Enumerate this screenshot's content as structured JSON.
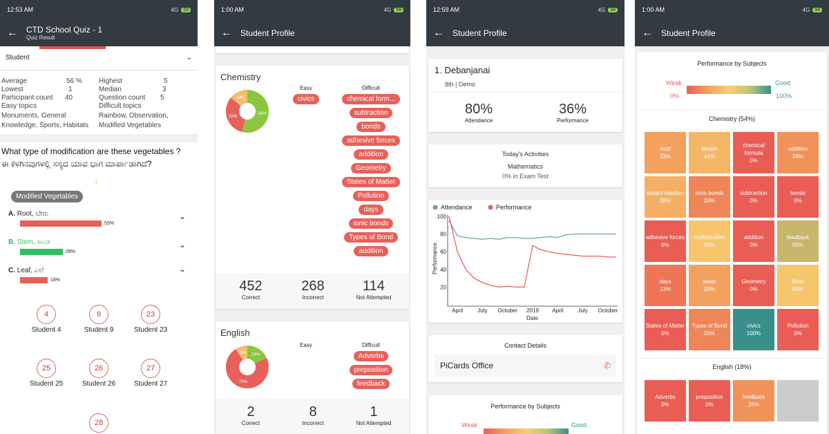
{
  "colors": {
    "appbar": "#333a40",
    "red": "#e8605a",
    "green": "#2fbf60",
    "teal": "#6fa5a0"
  },
  "p1": {
    "time": "12:53 AM",
    "net": "4G",
    "battery": "59",
    "title": "CTD School Quiz - 1",
    "subtitle": "Quiz Result",
    "student_label": "Student",
    "stats": {
      "average_l": "Average",
      "average_v": "56 %",
      "highest_l": "Highest",
      "highest_v": "5",
      "lowest_l": "Lowest",
      "lowest_v": "1",
      "median_l": "Median",
      "median_v": "3",
      "participant_l": "Participant count",
      "participant_v": "40",
      "question_l": "Question count",
      "question_v": "5",
      "easy_l": "Easy topics",
      "difficult_l": "Difficult topics",
      "easy_v1": "Monuments, General",
      "easy_v2": "Knowledge, Sports, Habitats",
      "difficult_v1": "Rainbow, Observation,",
      "difficult_v2": "Modified Vegetables"
    },
    "question_en": "What type of modification are these vegetables ?",
    "question_kn": "ಈ ಕೆಳಗಿನವುಗಳಲ್ಲಿ ಸಸ್ಯದ ಯಾವ ಭಾಗ ಮಾರ್ಪಾಡಾಗಿದೆ?",
    "topic_chip": "Modified Vegetables",
    "options": [
      {
        "letter": "A.",
        "label": "Root, ಬೇರು",
        "pct": "53%",
        "value": 53,
        "color": "#e8605a",
        "chev": "⌄"
      },
      {
        "letter": "B.",
        "label": "Stem, ಕಾಂಡ",
        "pct": "28%",
        "value": 28,
        "color": "#2fbf60",
        "chev": "⌄"
      },
      {
        "letter": "C.",
        "label": "Leaf, ಎಲೆ",
        "pct": "18%",
        "value": 18,
        "color": "#e8605a",
        "chev": "⌃"
      }
    ],
    "students": [
      {
        "num": "4",
        "name": "Student 4"
      },
      {
        "num": "9",
        "name": "Student 9"
      },
      {
        "num": "23",
        "name": "Student 23"
      },
      {
        "num": "25",
        "name": "Student 25"
      },
      {
        "num": "26",
        "name": "Student 26"
      },
      {
        "num": "27",
        "name": "Student 27"
      },
      {
        "num": "28",
        "name": ""
      }
    ]
  },
  "p2": {
    "time": "1:00 AM",
    "net": "4G",
    "battery": "58",
    "title": "Student Profile",
    "easy_h": "Easy",
    "difficult_h": "Difficult",
    "chemistry": {
      "name": "Chemistry",
      "easy": [
        "civics"
      ],
      "difficult": [
        "chemical form...",
        "subtraction",
        "bonds",
        "adhesive forces",
        "addition",
        "Geometry",
        "States of Matter",
        "Pollution",
        "days",
        "ionic bonds",
        "Types of Bond",
        "addition"
      ],
      "pie": [
        {
          "label": "54%",
          "value": 54,
          "color": "#8cc63f"
        },
        {
          "label": "32%",
          "value": 32,
          "color": "#e8605a"
        },
        {
          "label": "14%",
          "value": 14,
          "color": "#f0c070"
        }
      ],
      "correct": "452",
      "incorrect": "268",
      "not_attempted": "114"
    },
    "english": {
      "name": "English",
      "easy": [],
      "difficult": [
        "Adverbs",
        "preposition",
        "feedback"
      ],
      "pie": [
        {
          "label": "18%",
          "value": 18,
          "color": "#8cc63f"
        },
        {
          "label": "73%",
          "value": 73,
          "color": "#e8605a"
        },
        {
          "label": "9%",
          "value": 9,
          "color": "#f0c070"
        }
      ],
      "correct": "2",
      "incorrect": "8",
      "not_attempted": "1"
    },
    "correct_l": "Correct",
    "incorrect_l": "Incorrect",
    "na_l": "Not Attempted"
  },
  "p3": {
    "time": "12:59 AM",
    "net": "4G",
    "battery": "58",
    "title": "Student Profile",
    "name": "1. Debanjanai",
    "class": "8th | Demo",
    "attendance_v": "80%",
    "attendance_l": "Attendance",
    "performance_v": "36%",
    "performance_l": "Performance",
    "activities_h": "Today's Activities",
    "activities_subject": "Mathematics",
    "activities_detail": "0% in Exam Test",
    "legend_att": "Attendance",
    "legend_perf": "Performance",
    "ylabel": "Performance",
    "xlabel": "Date",
    "yticks": [
      "100",
      "80",
      "60",
      "40",
      "20"
    ],
    "xticks": [
      "April",
      "July",
      "October",
      "2019",
      "April",
      "July",
      "October"
    ],
    "contact_h": "Contact Details",
    "contact_name": "PiCards Office",
    "perf_h": "Performance by Subjects",
    "weak": "Weak",
    "good": "Good"
  },
  "chart_data": {
    "type": "line",
    "x": [
      "2018-03",
      "2018-04",
      "2018-05",
      "2018-06",
      "2018-07",
      "2018-08",
      "2018-09",
      "2018-10",
      "2018-11",
      "2018-12",
      "2019-01",
      "2019-02",
      "2019-03",
      "2019-04",
      "2019-05",
      "2019-06",
      "2019-07",
      "2019-08",
      "2019-09",
      "2019-10",
      "2019-11"
    ],
    "series": [
      {
        "name": "Attendance",
        "color": "#6fa5a0",
        "values": [
          95,
          78,
          76,
          75,
          74,
          75,
          74,
          76,
          76,
          75,
          75,
          76,
          77,
          76,
          79,
          80,
          80,
          80,
          80,
          80,
          80
        ]
      },
      {
        "name": "Performance",
        "color": "#e8605a",
        "values": [
          100,
          60,
          40,
          30,
          25,
          22,
          20,
          21,
          20,
          20,
          67,
          62,
          60,
          58,
          57,
          56,
          55,
          55,
          55,
          54,
          54
        ]
      }
    ],
    "ylabel": "Performance",
    "xlabel": "Date",
    "ylim": [
      0,
      100
    ],
    "grid": false,
    "legend": "top-left"
  },
  "p4": {
    "time": "1:00 AM",
    "net": "4G",
    "battery": "58",
    "title": "Student Profile",
    "perf_h": "Performance by Subjects",
    "weak": "Weak",
    "good": "Good",
    "min": "0%",
    "max": "100%",
    "chem_h": "Chemistry (54%)",
    "eng_h": "English (18%)",
    "chem_cells": [
      {
        "name": "Acid",
        "pct": "33%",
        "color": "#f2a25e"
      },
      {
        "name": "Metals",
        "pct": "41%",
        "color": "#f4b768"
      },
      {
        "name": "chemical formula",
        "pct": "0%",
        "color": "#e95d55"
      },
      {
        "name": "addition",
        "pct": "24%",
        "color": "#f0925a"
      },
      {
        "name": "instant reaction",
        "pct": "38%",
        "color": "#f3b064"
      },
      {
        "name": "ionic bonds",
        "pct": "20%",
        "color": "#ee8658"
      },
      {
        "name": "subtraction",
        "pct": "0%",
        "color": "#e95d55"
      },
      {
        "name": "bonds",
        "pct": "0%",
        "color": "#e95d55"
      },
      {
        "name": "adhesive forces",
        "pct": "0%",
        "color": "#e95d55"
      },
      {
        "name": "multiplication",
        "pct": "50%",
        "color": "#f6c56c"
      },
      {
        "name": "addition",
        "pct": "0%",
        "color": "#e95d55"
      },
      {
        "name": "feedback",
        "pct": "65%",
        "color": "#c7b56c"
      },
      {
        "name": "days",
        "pct": "13%",
        "color": "#ec7656"
      },
      {
        "name": "water",
        "pct": "33%",
        "color": "#f2a25e"
      },
      {
        "name": "Geometry",
        "pct": "0%",
        "color": "#e95d55"
      },
      {
        "name": "Mole",
        "pct": "50%",
        "color": "#f6c56c"
      },
      {
        "name": "States of Matter",
        "pct": "0%",
        "color": "#e95d55"
      },
      {
        "name": "Types of Bond",
        "pct": "20%",
        "color": "#ee8658"
      },
      {
        "name": "civics",
        "pct": "100%",
        "color": "#3a8f8a"
      },
      {
        "name": "Pollution",
        "pct": "0%",
        "color": "#e95d55"
      }
    ],
    "eng_cells": [
      {
        "name": "Adverbs",
        "pct": "0%",
        "color": "#e95d55"
      },
      {
        "name": "preposition",
        "pct": "0%",
        "color": "#e95d55"
      },
      {
        "name": "feedback",
        "pct": "25%",
        "color": "#f0925a"
      },
      {
        "name": "",
        "pct": "",
        "color": "#cccccc"
      }
    ]
  }
}
